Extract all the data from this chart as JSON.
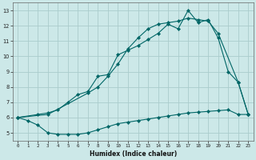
{
  "xlabel": "Humidex (Indice chaleur)",
  "bg_color": "#cce8e8",
  "grid_color": "#aacccc",
  "line_color": "#006666",
  "xlim": [
    -0.5,
    23.5
  ],
  "ylim": [
    4.5,
    13.5
  ],
  "xticks": [
    0,
    1,
    2,
    3,
    4,
    5,
    6,
    7,
    8,
    9,
    10,
    11,
    12,
    13,
    14,
    15,
    16,
    17,
    18,
    19,
    20,
    21,
    22,
    23
  ],
  "yticks": [
    5,
    6,
    7,
    8,
    9,
    10,
    11,
    12,
    13
  ],
  "series_min_x": [
    0,
    1,
    2,
    3,
    4,
    5,
    6,
    7,
    8,
    9,
    10,
    11,
    12,
    13,
    14,
    15,
    16,
    17,
    18,
    19,
    20,
    21,
    22,
    23
  ],
  "series_min_y": [
    6.0,
    5.8,
    5.5,
    5.0,
    4.9,
    4.9,
    4.9,
    5.0,
    5.2,
    5.4,
    5.6,
    5.7,
    5.8,
    5.9,
    6.0,
    6.1,
    6.2,
    6.3,
    6.35,
    6.4,
    6.45,
    6.5,
    6.2,
    6.2
  ],
  "series_max_x": [
    0,
    2,
    3,
    4,
    5,
    6,
    7,
    8,
    9,
    10,
    11,
    12,
    13,
    14,
    15,
    16,
    17,
    18,
    19,
    20,
    21,
    22,
    23
  ],
  "series_max_y": [
    6.0,
    6.2,
    6.3,
    6.5,
    7.0,
    7.5,
    7.7,
    8.7,
    8.8,
    10.1,
    10.4,
    10.7,
    11.1,
    11.5,
    12.1,
    11.8,
    13.0,
    12.2,
    12.4,
    11.2,
    9.0,
    8.3,
    6.2
  ],
  "series_avg_x": [
    0,
    3,
    7,
    8,
    9,
    10,
    11,
    12,
    13,
    14,
    15,
    16,
    17,
    18,
    19,
    20,
    22,
    23
  ],
  "series_avg_y": [
    6.0,
    6.2,
    7.6,
    8.0,
    8.7,
    9.5,
    10.5,
    11.2,
    11.8,
    12.1,
    12.2,
    12.3,
    12.5,
    12.4,
    12.3,
    11.5,
    8.3,
    6.2
  ]
}
